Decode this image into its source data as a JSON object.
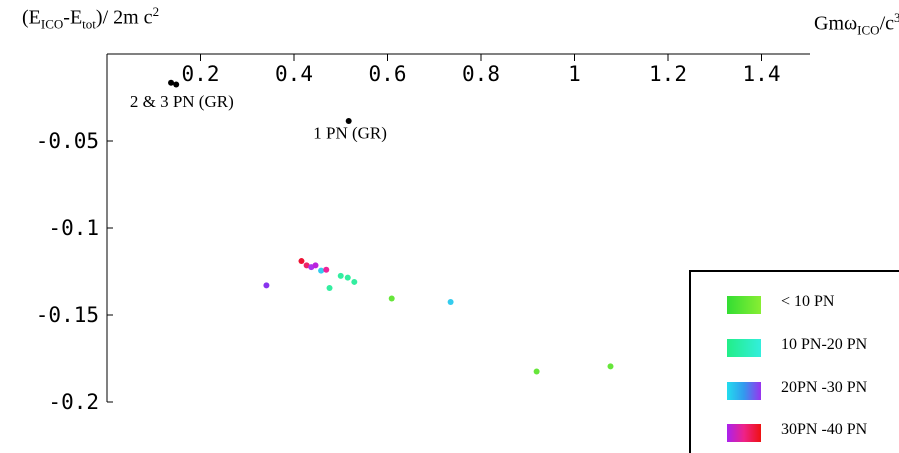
{
  "chart_data": {
    "type": "scatter",
    "title": "",
    "xlabel": {
      "pre": "Gmω",
      "sub": "ICO",
      "post": "/c",
      "sup": "3"
    },
    "ylabel": {
      "pre": "(E",
      "sub1": "ICO",
      "mid": "-E",
      "sub2": "tot",
      "post": ")/ 2m c",
      "sup": "2"
    },
    "x_ticks": [
      "0.2",
      "0.4",
      "0.6",
      "0.8",
      "1",
      "1.2",
      "1.4"
    ],
    "x_tick_values": [
      0.2,
      0.4,
      0.6,
      0.8,
      1.0,
      1.2,
      1.4
    ],
    "y_ticks": [
      "-0.05",
      "-0.1",
      "-0.15",
      "-0.2"
    ],
    "y_tick_values": [
      -0.05,
      -0.1,
      -0.15,
      -0.2
    ],
    "xlim": [
      0.0,
      1.5
    ],
    "ylim": [
      -0.2,
      0.0
    ],
    "grid": false,
    "legend_position": "bottom-right",
    "annotations": [
      {
        "text": "2 & 3 PN (GR)",
        "x": 0.16,
        "y": -0.027
      },
      {
        "text": "1 PN (GR)",
        "x": 0.52,
        "y": -0.045
      }
    ],
    "series": [
      {
        "name": "GR",
        "color": "#000000",
        "points": [
          [
            0.137,
            -0.0165
          ],
          [
            0.148,
            -0.0175
          ],
          [
            0.517,
            -0.0385
          ]
        ]
      },
      {
        "name": "< 10 PN",
        "color": "#66e63a",
        "points": [
          [
            0.609,
            -0.1405
          ],
          [
            0.919,
            -0.1825
          ],
          [
            1.077,
            -0.1795
          ]
        ]
      },
      {
        "name": "10 PN-20 PN",
        "color": "#33eea0",
        "points": [
          [
            0.476,
            -0.1345
          ],
          [
            0.5,
            -0.1275
          ],
          [
            0.515,
            -0.1285
          ],
          [
            0.529,
            -0.131
          ]
        ]
      },
      {
        "name": "20PN -30 PN",
        "color": "#33ccee",
        "points": [
          [
            0.341,
            -0.133
          ],
          [
            0.458,
            -0.1245
          ],
          [
            0.735,
            -0.1425
          ]
        ]
      },
      {
        "name": "30PN -40 PN",
        "color": "#ee2266",
        "points": [
          [
            0.416,
            -0.119
          ],
          [
            0.427,
            -0.1215
          ],
          [
            0.437,
            -0.1225
          ],
          [
            0.446,
            -0.1215
          ],
          [
            0.469,
            -0.124
          ]
        ]
      }
    ],
    "point_colors": {
      "0.341": "#8833ee",
      "0.437": "#aa33ee",
      "0.446": "#bb22dd",
      "0.469": "#ee2299",
      "0.416": "#ee1133"
    },
    "legend": [
      {
        "label": "< 10 PN",
        "gradient": [
          "#33dd33",
          "#88ee33"
        ]
      },
      {
        "label": "10 PN-20 PN",
        "gradient": [
          "#22ee88",
          "#33eedd"
        ]
      },
      {
        "label": "20PN -30 PN",
        "gradient": [
          "#22ddee",
          "#3399ee",
          "#9933ee"
        ]
      },
      {
        "label": "30PN -40 PN",
        "gradient": [
          "#aa22ee",
          "#ee2288",
          "#ee1111"
        ]
      }
    ]
  }
}
